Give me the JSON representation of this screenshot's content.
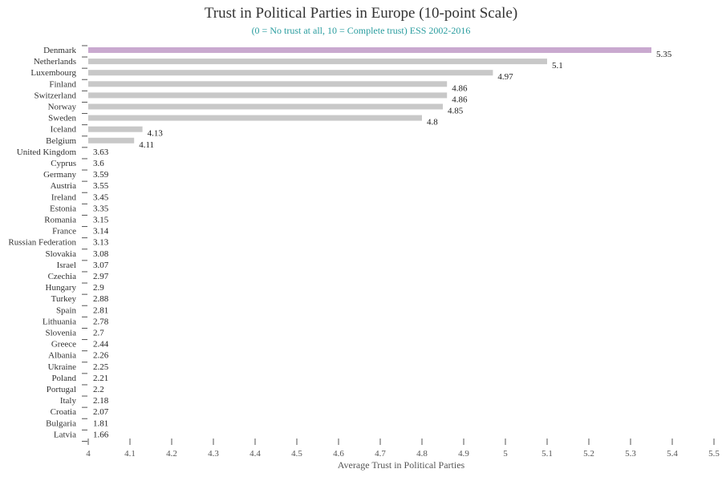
{
  "chart_data": {
    "type": "bar",
    "orientation": "horizontal",
    "title": "Trust in Political Parties in Europe (10-point Scale)",
    "subtitle": "(0 = No trust at all, 10 = Complete trust) ESS 2002-2016",
    "xlabel": "Average Trust in Political Parties",
    "ylabel": "",
    "xlim": [
      4,
      5.5
    ],
    "x_ticks": [
      "4",
      "4.1",
      "4.2",
      "4.3",
      "4.4",
      "4.5",
      "4.6",
      "4.7",
      "4.8",
      "4.9",
      "5",
      "5.1",
      "5.2",
      "5.3",
      "5.4",
      "5.5"
    ],
    "grid": false,
    "categories": [
      "Denmark",
      "Netherlands",
      "Luxembourg",
      "Finland",
      "Switzerland",
      "Norway",
      "Sweden",
      "Iceland",
      "Belgium",
      "United Kingdom",
      "Cyprus",
      "Germany",
      "Austria",
      "Ireland",
      "Estonia",
      "Romania",
      "France",
      "Russian Federation",
      "Slovakia",
      "Israel",
      "Czechia",
      "Hungary",
      "Turkey",
      "Spain",
      "Lithuania",
      "Slovenia",
      "Greece",
      "Albania",
      "Ukraine",
      "Poland",
      "Portugal",
      "Italy",
      "Croatia",
      "Bulgaria",
      "Latvia"
    ],
    "values": [
      5.35,
      5.1,
      4.97,
      4.86,
      4.86,
      4.85,
      4.8,
      4.13,
      4.11,
      3.63,
      3.6,
      3.59,
      3.55,
      3.45,
      3.35,
      3.15,
      3.14,
      3.13,
      3.08,
      3.07,
      2.97,
      2.9,
      2.88,
      2.81,
      2.78,
      2.7,
      2.44,
      2.26,
      2.25,
      2.21,
      2.2,
      2.18,
      2.07,
      1.81,
      1.66
    ],
    "value_labels": [
      "5.35",
      "5.1",
      "4.97",
      "4.86",
      "4.86",
      "4.85",
      "4.8",
      "4.13",
      "4.11",
      "3.63",
      "3.6",
      "3.59",
      "3.55",
      "3.45",
      "3.35",
      "3.15",
      "3.14",
      "3.13",
      "3.08",
      "3.07",
      "2.97",
      "2.9",
      "2.88",
      "2.81",
      "2.78",
      "2.7",
      "2.44",
      "2.26",
      "2.25",
      "2.21",
      "2.2",
      "2.18",
      "2.07",
      "1.81",
      "1.66"
    ],
    "highlight_category": "Denmark",
    "colors": {
      "bar": "#c8c8c8",
      "highlight": "#c9a9cf",
      "axis": "#555555",
      "subtitle": "#2a9d9f"
    }
  }
}
